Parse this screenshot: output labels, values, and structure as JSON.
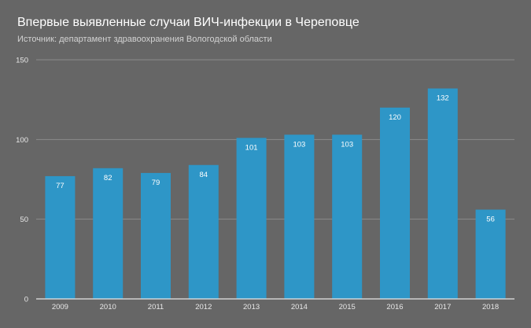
{
  "header": {
    "title": "Впервые выявленные случаи ВИЧ-инфекции в Череповце",
    "subtitle": "Источник: департамент здравоохранения Вологодской области"
  },
  "colors": {
    "background": "#666666",
    "bar": "#2e96c7",
    "grid": "#8c8c8c",
    "axis": "#e6e6e6",
    "text": "#ffffff"
  },
  "chart_data": {
    "type": "bar",
    "title": "Впервые выявленные случаи ВИЧ-инфекции в Череповце",
    "subtitle": "Источник: департамент здравоохранения Вологодской области",
    "categories": [
      "2009",
      "2010",
      "2011",
      "2012",
      "2013",
      "2014",
      "2015",
      "2016",
      "2017",
      "2018"
    ],
    "values": [
      77,
      82,
      79,
      84,
      101,
      103,
      103,
      120,
      132,
      56
    ],
    "ylim": [
      0,
      150
    ],
    "yticks": [
      0,
      50,
      100,
      150
    ],
    "xlabel": "",
    "ylabel": "",
    "grid": true,
    "data_labels": true
  }
}
